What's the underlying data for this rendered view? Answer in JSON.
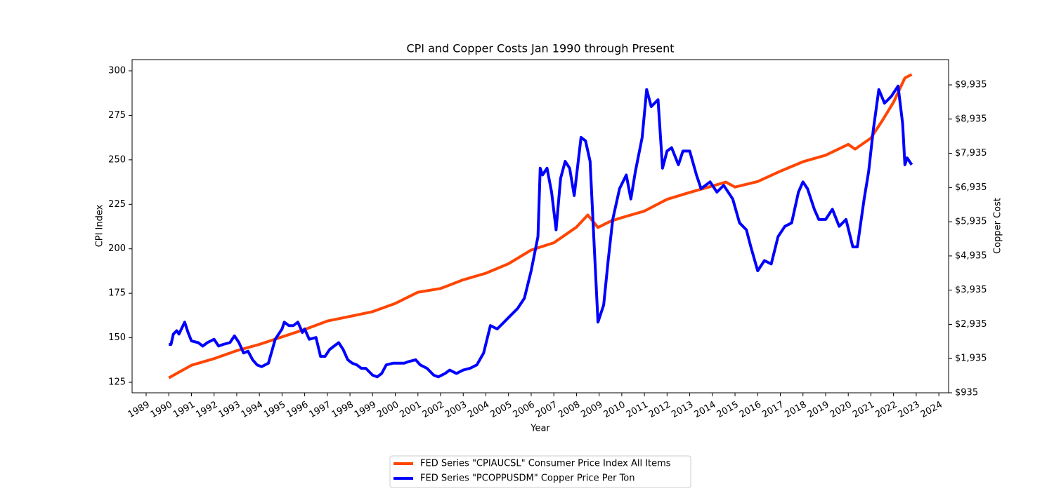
{
  "chart_data": {
    "type": "line",
    "title": "CPI and Copper Costs Jan 1990 through Present",
    "x_label": "Year",
    "y_label": "CPI Index",
    "y2_label": "Copper Cost",
    "xlim": [
      1988.38,
      2024.43
    ],
    "xticks": [
      1989,
      1990,
      1991,
      1992,
      1993,
      1994,
      1995,
      1996,
      1997,
      1998,
      1999,
      2000,
      2001,
      2002,
      2003,
      2004,
      2005,
      2006,
      2007,
      2008,
      2009,
      2010,
      2011,
      2012,
      2013,
      2014,
      2015,
      2016,
      2017,
      2018,
      2019,
      2020,
      2021,
      2022,
      2023,
      2024
    ],
    "ylim": [
      119.1,
      306.3
    ],
    "yticks": [
      125,
      150,
      175,
      200,
      225,
      250,
      275,
      300
    ],
    "y2lim": [
      935,
      10673
    ],
    "y2ticks": [
      {
        "value": 935,
        "label": "$935"
      },
      {
        "value": 1935,
        "label": "$1,935"
      },
      {
        "value": 2935,
        "label": "$2,935"
      },
      {
        "value": 3935,
        "label": "$3,935"
      },
      {
        "value": 4935,
        "label": "$4,935"
      },
      {
        "value": 5935,
        "label": "$5,935"
      },
      {
        "value": 6935,
        "label": "$6,935"
      },
      {
        "value": 7935,
        "label": "$7,935"
      },
      {
        "value": 8935,
        "label": "$8,935"
      },
      {
        "value": 9935,
        "label": "$9,935"
      }
    ],
    "legend": "lower center",
    "series": [
      {
        "name": "FED Series \"CPIAUCSL\" Consumer Price Index All Items",
        "color": "#ff4500",
        "x": [
          1990.0,
          1991.0,
          1992.0,
          1993.0,
          1994.0,
          1995.0,
          1996.0,
          1997.0,
          1998.0,
          1999.0,
          2000.0,
          2001.0,
          2002.0,
          2003.0,
          2004.0,
          2005.0,
          2006.0,
          2007.0,
          2008.0,
          2008.5,
          2008.95,
          2009.5,
          2010.0,
          2011.0,
          2012.0,
          2013.0,
          2014.0,
          2014.6,
          2015.0,
          2016.0,
          2017.0,
          2018.0,
          2019.0,
          2020.0,
          2020.3,
          2021.0,
          2021.5,
          2022.0,
          2022.5,
          2022.8
        ],
        "values": [
          127.5,
          134.6,
          138.3,
          142.8,
          146.3,
          150.5,
          154.7,
          159.4,
          162.0,
          164.7,
          169.3,
          175.6,
          177.7,
          182.6,
          186.3,
          191.6,
          199.3,
          203.4,
          212.2,
          219.0,
          212.0,
          215.5,
          217.5,
          221.2,
          227.8,
          231.7,
          235.3,
          237.5,
          234.7,
          237.8,
          243.6,
          248.9,
          252.6,
          258.7,
          256.0,
          262.2,
          272.0,
          282.4,
          296.0,
          298.0
        ]
      },
      {
        "name": "FED Series \"PCOPPUSDM\" Copper Price Per Ton",
        "color": "#0000ff",
        "axis": "y2",
        "x": [
          1990.0,
          1990.1,
          1990.2,
          1990.35,
          1990.45,
          1990.7,
          1990.85,
          1991.0,
          1991.3,
          1991.5,
          1991.7,
          1992.0,
          1992.2,
          1992.4,
          1992.7,
          1992.9,
          1993.1,
          1993.3,
          1993.5,
          1993.7,
          1993.9,
          1994.1,
          1994.4,
          1994.7,
          1995.0,
          1995.1,
          1995.3,
          1995.5,
          1995.7,
          1995.9,
          1996.0,
          1996.2,
          1996.5,
          1996.7,
          1996.9,
          1997.1,
          1997.3,
          1997.5,
          1997.7,
          1997.9,
          1998.1,
          1998.3,
          1998.5,
          1998.7,
          1999.0,
          1999.2,
          1999.4,
          1999.6,
          1999.9,
          2000.2,
          2000.4,
          2000.6,
          2000.9,
          2001.1,
          2001.4,
          2001.7,
          2001.9,
          2002.2,
          2002.4,
          2002.7,
          2003.0,
          2003.3,
          2003.6,
          2003.9,
          2004.2,
          2004.5,
          2004.8,
          2005.1,
          2005.4,
          2005.7,
          2006.0,
          2006.3,
          2006.4,
          2006.5,
          2006.7,
          2006.9,
          2007.1,
          2007.3,
          2007.5,
          2007.7,
          2007.9,
          2008.2,
          2008.4,
          2008.6,
          2008.8,
          2008.95,
          2009.2,
          2009.4,
          2009.6,
          2009.9,
          2010.2,
          2010.4,
          2010.6,
          2010.9,
          2011.1,
          2011.3,
          2011.6,
          2011.8,
          2012.0,
          2012.2,
          2012.5,
          2012.7,
          2013.0,
          2013.3,
          2013.5,
          2013.9,
          2014.2,
          2014.5,
          2014.9,
          2015.2,
          2015.5,
          2015.7,
          2016.0,
          2016.3,
          2016.6,
          2016.9,
          2017.2,
          2017.5,
          2017.8,
          2018.0,
          2018.2,
          2018.5,
          2018.7,
          2019.0,
          2019.3,
          2019.6,
          2019.9,
          2020.2,
          2020.4,
          2020.7,
          2020.9,
          2021.1,
          2021.35,
          2021.6,
          2021.9,
          2022.2,
          2022.4,
          2022.5,
          2022.6,
          2022.8
        ],
        "values": [
          2350,
          2350,
          2650,
          2750,
          2650,
          3000,
          2700,
          2450,
          2400,
          2300,
          2400,
          2500,
          2300,
          2350,
          2400,
          2600,
          2400,
          2100,
          2150,
          1900,
          1750,
          1700,
          1800,
          2500,
          2800,
          3000,
          2900,
          2900,
          3000,
          2700,
          2800,
          2500,
          2550,
          2000,
          2000,
          2200,
          2300,
          2400,
          2200,
          1900,
          1800,
          1750,
          1650,
          1650,
          1450,
          1400,
          1500,
          1750,
          1800,
          1800,
          1800,
          1850,
          1900,
          1750,
          1650,
          1450,
          1400,
          1500,
          1600,
          1500,
          1600,
          1650,
          1750,
          2100,
          2900,
          2800,
          3000,
          3200,
          3400,
          3700,
          4500,
          5500,
          7500,
          7300,
          7500,
          6800,
          5700,
          7200,
          7700,
          7500,
          6700,
          8400,
          8300,
          7700,
          5000,
          3000,
          3500,
          4800,
          6000,
          6900,
          7300,
          6600,
          7400,
          8400,
          9800,
          9300,
          9500,
          7500,
          8000,
          8100,
          7600,
          8000,
          8000,
          7300,
          6900,
          7100,
          6800,
          7000,
          6600,
          5900,
          5700,
          5200,
          4500,
          4800,
          4700,
          5500,
          5800,
          5900,
          6800,
          7100,
          6900,
          6300,
          6000,
          6000,
          6300,
          5800,
          6000,
          5200,
          5200,
          6600,
          7400,
          8600,
          9800,
          9400,
          9600,
          9900,
          8800,
          7600,
          7800,
          7600
        ]
      }
    ]
  }
}
